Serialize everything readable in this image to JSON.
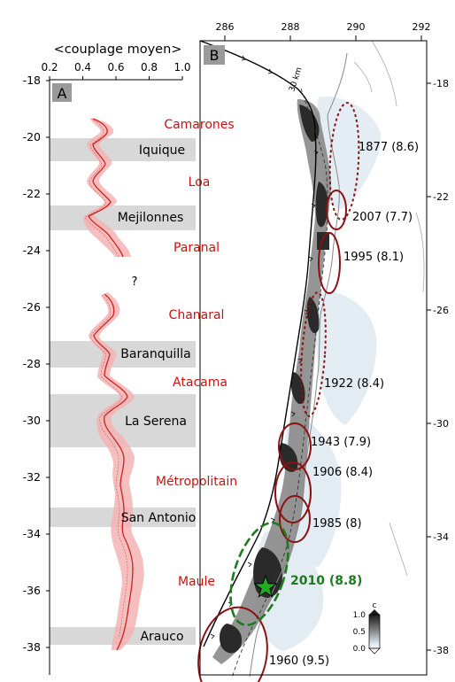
{
  "panel_a": {
    "letter": "A",
    "axis_title": "<couplage moyen>",
    "x_ticks": [
      "0.2",
      "0.4",
      "0.6",
      "0.8",
      "1.0"
    ],
    "y_ticks": [
      "-18",
      "-20",
      "-22",
      "-24",
      "-26",
      "-28",
      "-30",
      "-32",
      "-34",
      "-36",
      "-38"
    ],
    "question_mark": "?",
    "barriers": [
      {
        "name": "Iquique",
        "lat": -20.8
      },
      {
        "name": "Mejilonnes",
        "lat": -22.9
      },
      {
        "name": "Baranquilla",
        "lat": -27.8
      },
      {
        "name": "La Serena",
        "lat": -30.0
      },
      {
        "name": "San Antonio",
        "lat": -33.5
      },
      {
        "name": "Arauco",
        "lat": -37.7
      }
    ],
    "segments": [
      {
        "name": "Camarones",
        "lat": -19.4
      },
      {
        "name": "Loa",
        "lat": -21.6
      },
      {
        "name": "Paranal",
        "lat": -23.8
      },
      {
        "name": "Chanaral",
        "lat": -26.2
      },
      {
        "name": "Atacama",
        "lat": -28.8
      },
      {
        "name": "Métropolitain",
        "lat": -32.3
      },
      {
        "name": "Maule",
        "lat": -35.8
      }
    ],
    "colors": {
      "segment_label": "#cc1111",
      "band": "#d8d8d8",
      "curve": "#cc2222",
      "envelope": "#f4b4b4"
    }
  },
  "panel_b": {
    "letter": "B",
    "x_ticks": [
      "286",
      "288",
      "290",
      "292"
    ],
    "y_ticks_right": [
      "-18",
      "-22",
      "-26",
      "-30",
      "-34",
      "-38"
    ],
    "contour_label": "30 km",
    "earthquakes": [
      {
        "label": "1877 (8.6)",
        "year": "1877",
        "magnitude": 8.6
      },
      {
        "label": "2007 (7.7)",
        "year": "2007",
        "magnitude": 7.7
      },
      {
        "label": "1995 (8.1)",
        "year": "1995",
        "magnitude": 8.1
      },
      {
        "label": "1922 (8.4)",
        "year": "1922",
        "magnitude": 8.4
      },
      {
        "label": "1943 (7.9)",
        "year": "1943",
        "magnitude": 7.9
      },
      {
        "label": "1906 (8.4)",
        "year": "1906",
        "magnitude": 8.4
      },
      {
        "label": "1985 (8)",
        "year": "1985",
        "magnitude": 8
      },
      {
        "label": "2010 (8.8)",
        "year": "2010",
        "magnitude": 8.8
      },
      {
        "label": "1960 (9.5)",
        "year": "1960",
        "magnitude": 9.5
      }
    ],
    "colorbar": {
      "label": "c",
      "ticks": [
        "1.0",
        "0.5",
        "0.0"
      ]
    },
    "colors": {
      "rupture": "#8b1111",
      "maule": "#1e7a1e",
      "star": "#22aa22"
    }
  }
}
